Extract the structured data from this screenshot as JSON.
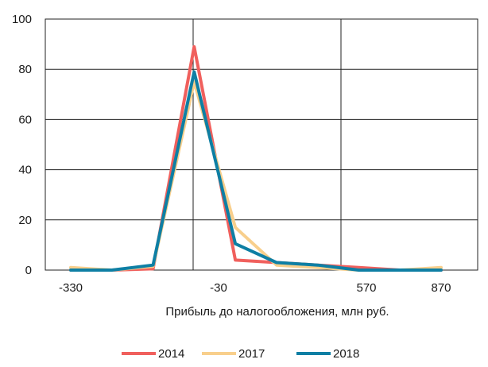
{
  "chart_data": {
    "type": "line",
    "title": "",
    "xlabel": "Прибыль до налогообложения, млн руб.",
    "ylabel": "",
    "x": [
      -330,
      -230,
      -130,
      -30,
      70,
      170,
      270,
      370,
      470,
      570
    ],
    "x_ticks": [
      -330,
      -30,
      570,
      870
    ],
    "x_tick_labels": [
      "-330",
      "-30",
      "570",
      "870"
    ],
    "xlim": [
      -330,
      870
    ],
    "ylim": [
      0,
      100
    ],
    "y_ticks": [
      0,
      20,
      40,
      60,
      80,
      100
    ],
    "y_tick_labels": [
      "0",
      "20",
      "40",
      "60",
      "80",
      "100"
    ],
    "grid": "horizontal gridlines and vertical lines at x ticks",
    "legend_position": "bottom",
    "series": [
      {
        "name": "2014",
        "color": "#F0605D",
        "values": [
          0,
          0,
          0.5,
          89,
          4,
          3,
          2,
          1,
          0,
          0
        ]
      },
      {
        "name": "2017",
        "color": "#F8CF8C",
        "values": [
          1,
          0,
          1.5,
          75,
          17,
          2,
          1,
          0,
          0,
          1
        ]
      },
      {
        "name": "2018",
        "color": "#0E7FA4",
        "values": [
          0,
          0,
          2,
          79,
          10.5,
          3,
          2,
          0,
          0,
          0
        ]
      }
    ]
  }
}
